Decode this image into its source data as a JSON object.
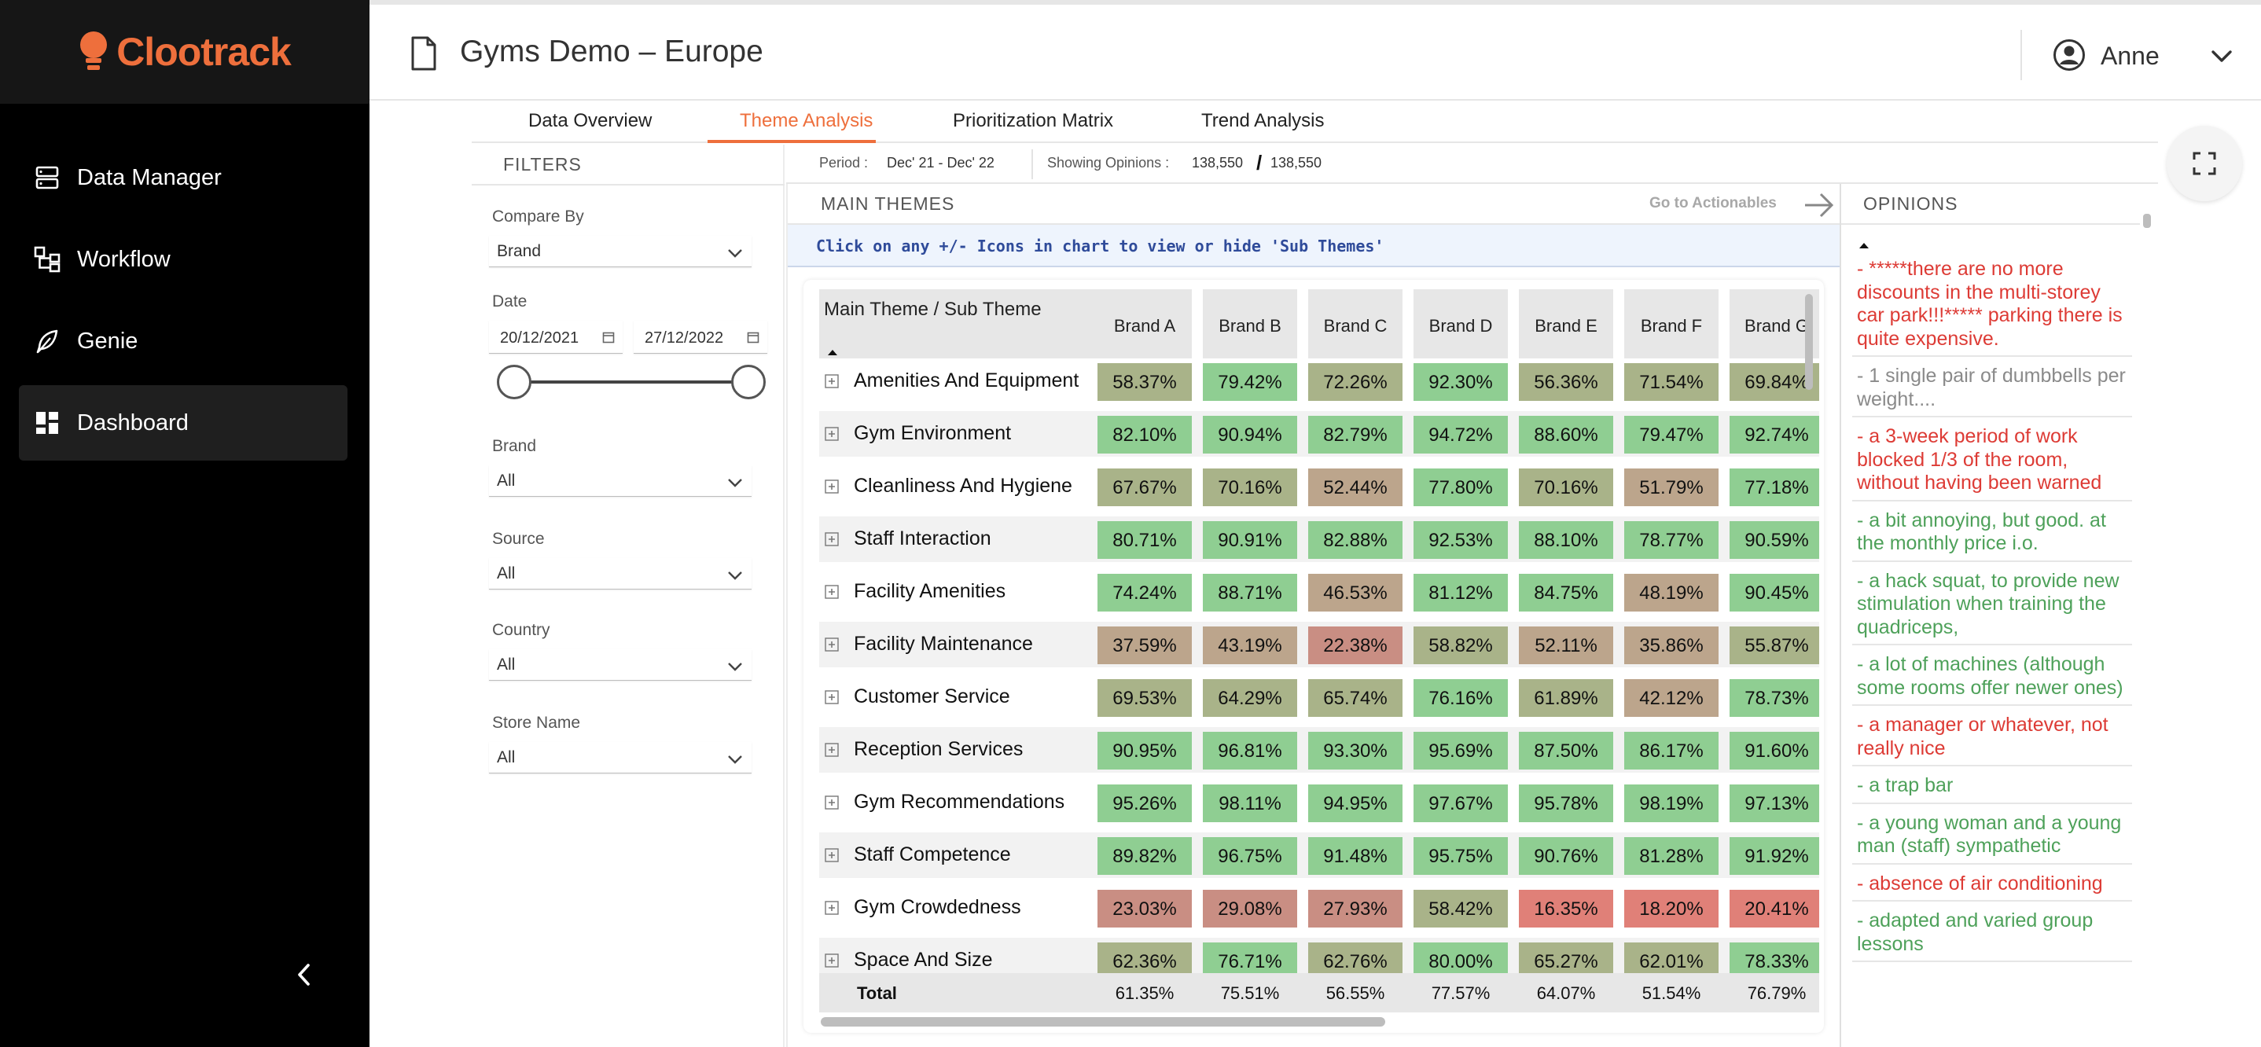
{
  "app": {
    "logo_text": "Clootrack",
    "brand_color": "#ee6f3c",
    "page_title": "Gyms Demo – Europe",
    "user_name": "Anne"
  },
  "sidebar": {
    "items": [
      {
        "label": "Data Manager",
        "icon": "database-icon"
      },
      {
        "label": "Workflow",
        "icon": "workflow-icon"
      },
      {
        "label": "Genie",
        "icon": "feather-icon"
      },
      {
        "label": "Dashboard",
        "icon": "dashboard-icon",
        "active": true
      }
    ]
  },
  "tabs": [
    {
      "label": "Data Overview"
    },
    {
      "label": "Theme Analysis",
      "active": true
    },
    {
      "label": "Prioritization Matrix"
    },
    {
      "label": "Trend Analysis"
    }
  ],
  "filters": {
    "title": "FILTERS",
    "compare_by_label": "Compare By",
    "compare_by_value": "Brand",
    "date_label": "Date",
    "date_from": "20/12/2021",
    "date_to": "27/12/2022",
    "brand_label": "Brand",
    "brand_value": "All",
    "source_label": "Source",
    "source_value": "All",
    "country_label": "Country",
    "country_value": "All",
    "store_label": "Store Name",
    "store_value": "All"
  },
  "period": {
    "label": "Period :",
    "value": "Dec' 21 - Dec' 22",
    "showing_label": "Showing Opinions :",
    "shown": "138,550",
    "slash": "/",
    "total": "138,550"
  },
  "main_themes": {
    "title": "MAIN THEMES",
    "go_actionables": "Go to Actionables",
    "info": "Click on any +/- Icons in chart to view or hide 'Sub Themes'",
    "header_theme": "Main Theme / Sub Theme",
    "brands": [
      "Brand A",
      "Brand B",
      "Brand C",
      "Brand D",
      "Brand E",
      "Brand F",
      "Brand G"
    ],
    "rows": [
      {
        "name": "Amenities And Equipment",
        "values": [
          "58.37%",
          "79.42%",
          "72.26%",
          "92.30%",
          "56.36%",
          "71.54%",
          "69.84%"
        ]
      },
      {
        "name": "Gym Environment",
        "values": [
          "82.10%",
          "90.94%",
          "82.79%",
          "94.72%",
          "88.60%",
          "79.47%",
          "92.74%"
        ]
      },
      {
        "name": "Cleanliness And Hygiene",
        "values": [
          "67.67%",
          "70.16%",
          "52.44%",
          "77.80%",
          "70.16%",
          "51.79%",
          "77.18%"
        ]
      },
      {
        "name": "Staff Interaction",
        "values": [
          "80.71%",
          "90.91%",
          "82.88%",
          "92.53%",
          "88.10%",
          "78.77%",
          "90.59%"
        ]
      },
      {
        "name": "Facility Amenities",
        "values": [
          "74.24%",
          "88.71%",
          "46.53%",
          "81.12%",
          "84.75%",
          "48.19%",
          "90.45%"
        ]
      },
      {
        "name": "Facility Maintenance",
        "values": [
          "37.59%",
          "43.19%",
          "22.38%",
          "58.82%",
          "52.11%",
          "35.86%",
          "55.87%"
        ]
      },
      {
        "name": "Customer Service",
        "values": [
          "69.53%",
          "64.29%",
          "65.74%",
          "76.16%",
          "61.89%",
          "42.12%",
          "78.73%"
        ]
      },
      {
        "name": "Reception Services",
        "values": [
          "90.95%",
          "96.81%",
          "93.30%",
          "95.69%",
          "87.50%",
          "86.17%",
          "91.60%"
        ]
      },
      {
        "name": "Gym Recommendations",
        "values": [
          "95.26%",
          "98.11%",
          "94.95%",
          "97.67%",
          "95.78%",
          "98.19%",
          "97.13%"
        ]
      },
      {
        "name": "Staff Competence",
        "values": [
          "89.82%",
          "96.75%",
          "91.48%",
          "95.75%",
          "90.76%",
          "81.28%",
          "91.92%"
        ]
      },
      {
        "name": "Gym Crowdedness",
        "values": [
          "23.03%",
          "29.08%",
          "27.93%",
          "58.42%",
          "16.35%",
          "18.20%",
          "20.41%"
        ]
      },
      {
        "name": "Space And Size",
        "values": [
          "62.36%",
          "76.71%",
          "62.76%",
          "80.00%",
          "65.27%",
          "62.01%",
          "78.33%"
        ]
      }
    ],
    "total_label": "Total",
    "totals": [
      "61.35%",
      "75.51%",
      "56.55%",
      "77.57%",
      "64.07%",
      "51.54%",
      "76.79%"
    ],
    "heat_colors": {
      "high": "#8fce92",
      "mid": "#a9b389",
      "low_mid": "#bca58c",
      "low": "#c98e83",
      "very_low": "#e08078"
    }
  },
  "opinions": {
    "title": "OPINIONS",
    "negative_color": "#dd3b35",
    "positive_color": "#4ea15a",
    "neutral_color": "#8a8a8a",
    "items": [
      {
        "text": "- *****there are no more discounts in the multi-storey car park!!!***** parking there is quite expensive.",
        "sentiment": "negative"
      },
      {
        "text": "- 1 single pair of dumbbells per weight....",
        "sentiment": "neutral"
      },
      {
        "text": "- a 3-week period of work blocked 1/3 of the room, without having been warned",
        "sentiment": "negative"
      },
      {
        "text": "- a bit annoying, but good. at the monthly price i.o.",
        "sentiment": "positive"
      },
      {
        "text": "- a hack squat, to provide new stimulation when training the quadriceps,",
        "sentiment": "positive"
      },
      {
        "text": "- a lot of machines (although some rooms offer newer ones)",
        "sentiment": "positive"
      },
      {
        "text": "- a manager or whatever, not really nice",
        "sentiment": "negative"
      },
      {
        "text": "- a trap bar",
        "sentiment": "positive"
      },
      {
        "text": "- a young woman and a young man (staff) sympathetic",
        "sentiment": "positive"
      },
      {
        "text": "- absence of air conditioning",
        "sentiment": "negative"
      },
      {
        "text": "- adapted and varied group lessons",
        "sentiment": "positive"
      }
    ]
  }
}
